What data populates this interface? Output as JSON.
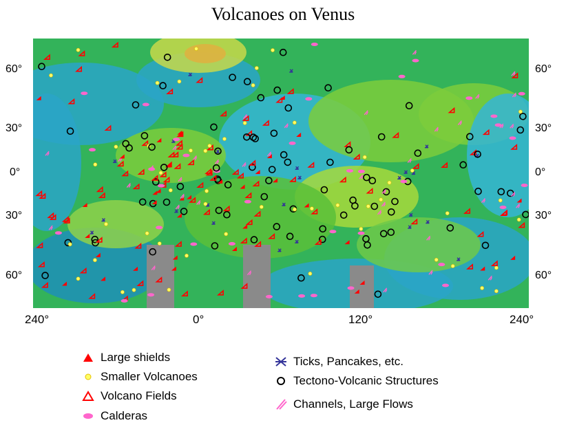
{
  "title": "Volcanoes on Venus",
  "lat_labels_left": [
    "60°",
    "30°",
    "0°",
    "30°",
    "60°"
  ],
  "lat_labels_right": [
    "60°",
    "30°",
    "0°",
    "30°",
    "60°"
  ],
  "lon_labels": [
    "240°",
    "0°",
    "120°",
    "240°"
  ],
  "legend": [
    {
      "label": "Large shields",
      "icon": "filled-red-triangle",
      "color": "#ff0000"
    },
    {
      "label": "Smaller Volcanoes",
      "icon": "yellow-dot",
      "color": "#ffff66"
    },
    {
      "label": "Volcano Fields",
      "icon": "open-red-triangle",
      "color": "#ff0000"
    },
    {
      "label": "Calderas",
      "icon": "pink-blob",
      "color": "#ff66cc"
    },
    {
      "label": "Ticks, Pancakes, etc.",
      "icon": "blue-x-star",
      "color": "#333399"
    },
    {
      "label": "Tectono-Volcanic Structures",
      "icon": "black-circle",
      "color": "#000000"
    },
    {
      "label": "Channels, Large Flows",
      "icon": "pink-slash",
      "color": "#ff66cc"
    }
  ]
}
